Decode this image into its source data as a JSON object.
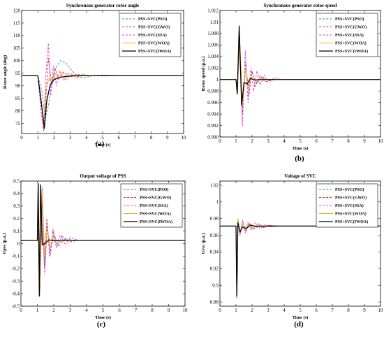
{
  "colors": {
    "PSO": "#2f88c8",
    "GWO": "#c0392b",
    "SSA": "#e838e8",
    "WOA": "#f0b020",
    "IWOA": "#000000"
  },
  "chart_data": [
    {
      "type": "line",
      "caption": "(a)",
      "title": "Synchronous generator rotor angle",
      "xlabel": "Time (s)",
      "ylabel": "Rotor angle (deg)",
      "xlim": [
        0,
        10
      ],
      "ylim": [
        71,
        120
      ],
      "xticks": [
        "0",
        "1",
        "2",
        "3",
        "4",
        "5",
        "6",
        "7",
        "8",
        "9",
        "10"
      ],
      "yticks": [
        "75",
        "80",
        "85",
        "90",
        "95",
        "100",
        "105",
        "110",
        "115",
        "120"
      ],
      "ytick_values": [
        75,
        80,
        85,
        90,
        95,
        100,
        105,
        110,
        115,
        120
      ],
      "legend": [
        "PSS+SVC(PSO)",
        "PSS+SVC(GWO)",
        "PSS+SVC(SSA)",
        "PSS+SVC(WOA)",
        "PSS+SVC(IWOA)"
      ],
      "legend_position": "top-right",
      "series": [
        {
          "name": "PSS+SVC(PSO)",
          "color": "#2f88c8",
          "dash": "3,2",
          "x": [
            0,
            1.0,
            1.25,
            1.45,
            1.65,
            1.85,
            2.1,
            2.4,
            2.75,
            3.1,
            3.5,
            3.9,
            4.4,
            5,
            6,
            10
          ],
          "y": [
            94,
            94,
            88,
            77,
            82,
            90,
            97,
            100,
            99,
            96,
            93.5,
            93.2,
            94,
            94.3,
            94,
            94
          ]
        },
        {
          "name": "PSS+SVC(GWO)",
          "color": "#c0392b",
          "dash": "3,2",
          "x": [
            0,
            1.0,
            1.2,
            1.35,
            1.5,
            1.65,
            1.85,
            2.05,
            2.3,
            2.6,
            3.0,
            3.5,
            4.2,
            10
          ],
          "y": [
            94,
            94,
            80,
            72,
            85,
            101,
            91,
            97,
            93,
            95.5,
            93.5,
            94.5,
            94,
            94
          ]
        },
        {
          "name": "PSS+SVC(SSA)",
          "color": "#e838e8",
          "dash": "3,2",
          "x": [
            0,
            1.0,
            1.2,
            1.35,
            1.5,
            1.65,
            1.8,
            1.95,
            2.15,
            2.35,
            2.6,
            2.9,
            3.3,
            3.8,
            10
          ],
          "y": [
            94,
            94,
            80,
            72,
            95,
            107,
            86,
            98,
            90,
            96,
            92,
            95,
            93.5,
            94,
            94
          ]
        },
        {
          "name": "PSS+SVC(WOA)",
          "color": "#f0b020",
          "dash": "",
          "x": [
            0,
            1.0,
            1.2,
            1.35,
            1.5,
            1.7,
            1.9,
            2.1,
            2.3,
            2.5,
            2.8,
            3.1,
            3.4,
            3.8,
            4.2,
            10
          ],
          "y": [
            94,
            94,
            85,
            75,
            89,
            93,
            91.5,
            95,
            92.5,
            95.5,
            92.5,
            95,
            93,
            94.5,
            94,
            94
          ]
        },
        {
          "name": "PSS+SVC(IWOA)",
          "color": "#000000",
          "dash": "",
          "x": [
            0,
            1.0,
            1.2,
            1.4,
            1.55,
            1.75,
            2.0,
            2.3,
            2.7,
            3.2,
            10
          ],
          "y": [
            94,
            94,
            84,
            73,
            84,
            90,
            92.5,
            93.3,
            93.7,
            94,
            94
          ]
        }
      ]
    },
    {
      "type": "line",
      "caption": "(b)",
      "title": "Synchronous generator rotor speed",
      "xlabel": "Time (s)",
      "ylabel": "Rotor speed (p.u.)",
      "xlim": [
        0,
        10
      ],
      "ylim": [
        0.99,
        1.012
      ],
      "xticks": [
        "0",
        "1",
        "2",
        "3",
        "4",
        "5",
        "6",
        "7",
        "8",
        "9",
        "10"
      ],
      "yticks": [
        "0.990",
        "0.992",
        "0.994",
        "0.996",
        "0.998",
        "1",
        "1.002",
        "1.004",
        "1.006",
        "1.008",
        "1.01",
        "1.012"
      ],
      "ytick_values": [
        0.99,
        0.992,
        0.994,
        0.996,
        0.998,
        1.0,
        1.002,
        1.004,
        1.006,
        1.008,
        1.01,
        1.012
      ],
      "legend": [
        "PSS+SVC(PSO)",
        "PSS+SVC(GWO)",
        "PSS+SVC(SSA)",
        "PSS+SVC(WOA)",
        "PSS+SVC(IWOA)"
      ],
      "legend_position": "top-right",
      "series": [
        {
          "name": "PSS+SVC(PSO)",
          "color": "#2f88c8",
          "dash": "3,2",
          "x": [
            0,
            1.0,
            1.1,
            1.2,
            1.4,
            1.6,
            1.8,
            2.0,
            2.3,
            2.6,
            3.0,
            3.5,
            10
          ],
          "y": [
            1.0,
            1.0,
            0.9985,
            1.007,
            0.995,
            1.002,
            0.9985,
            1.001,
            0.9993,
            1.0004,
            0.9998,
            1.0,
            1.0
          ]
        },
        {
          "name": "PSS+SVC(GWO)",
          "color": "#c0392b",
          "dash": "3,2",
          "x": [
            0,
            1.0,
            1.1,
            1.22,
            1.4,
            1.6,
            1.8,
            2.0,
            2.2,
            2.5,
            2.8,
            3.2,
            10
          ],
          "y": [
            1.0,
            1.0,
            0.998,
            1.008,
            0.994,
            1.003,
            0.997,
            1.0015,
            0.9988,
            1.0007,
            0.9996,
            1.0,
            1.0
          ]
        },
        {
          "name": "PSS+SVC(SSA)",
          "color": "#e838e8",
          "dash": "3,2",
          "x": [
            0,
            1.0,
            1.1,
            1.22,
            1.4,
            1.58,
            1.75,
            1.92,
            2.1,
            2.3,
            2.5,
            2.75,
            3.0,
            3.4,
            3.8,
            10
          ],
          "y": [
            1.0,
            1.0,
            0.998,
            1.0075,
            0.992,
            1.005,
            0.996,
            1.002,
            0.998,
            1.0015,
            0.999,
            1.0008,
            0.9995,
            1.0003,
            1.0,
            1.0
          ]
        },
        {
          "name": "PSS+SVC(WOA)",
          "color": "#f0b020",
          "dash": "",
          "x": [
            0,
            1.0,
            1.1,
            1.22,
            1.4,
            1.6,
            1.8,
            2.0,
            2.3,
            2.6,
            3.0,
            10
          ],
          "y": [
            1.0,
            1.0,
            0.9982,
            1.008,
            0.9955,
            1.002,
            0.9988,
            1.0008,
            0.9996,
            1.0002,
            1.0,
            1.0
          ]
        },
        {
          "name": "PSS+SVC(IWOA)",
          "color": "#000000",
          "dash": "",
          "x": [
            0,
            1.0,
            1.08,
            1.2,
            1.35,
            1.5,
            1.7,
            1.9,
            2.2,
            2.5,
            3.0,
            10
          ],
          "y": [
            1.0,
            1.0,
            0.9975,
            1.0093,
            0.9955,
            0.9995,
            0.9992,
            1.0002,
            0.9999,
            1.0,
            1.0,
            1.0
          ]
        }
      ]
    },
    {
      "type": "line",
      "caption": "(c)",
      "title": "Output voltage of  PSS",
      "xlabel": "Time (s)",
      "ylabel": "Upss (p.u.)",
      "xlim": [
        0,
        10
      ],
      "ylim": [
        -0.5,
        0.5
      ],
      "xticks": [
        "0",
        "1",
        "2",
        "3",
        "4",
        "5",
        "6",
        "7",
        "8",
        "9",
        "10"
      ],
      "yticks": [
        "-0.5",
        "-0.4",
        "-0.3",
        "-0.2",
        "-0.1",
        "0",
        "0.1",
        "0.2",
        "0.3",
        "0.4",
        "0.5"
      ],
      "ytick_values": [
        -0.5,
        -0.4,
        -0.3,
        -0.2,
        -0.1,
        0,
        0.1,
        0.2,
        0.3,
        0.4,
        0.5
      ],
      "legend": [
        "PSS+SVC(PSO)",
        "PSS+SVC(GWO)",
        "PSS+SVC(SSA)",
        "PSS+SVC(WOA)",
        "PSS+SVC(IWOA)"
      ],
      "legend_position": "top-right",
      "series": [
        {
          "name": "PSS+SVC(PSO)",
          "color": "#2f88c8",
          "dash": "3,2",
          "x": [
            0,
            1.0,
            1.05,
            1.15,
            1.3,
            1.45,
            1.6,
            1.8,
            2.0,
            2.3,
            2.7,
            3.2,
            10
          ],
          "y": [
            0.025,
            0.025,
            0.45,
            -0.42,
            0.45,
            -0.2,
            0.15,
            -0.08,
            0.08,
            -0.02,
            0.04,
            0.025,
            0.025
          ]
        },
        {
          "name": "PSS+SVC(GWO)",
          "color": "#c0392b",
          "dash": "3,2",
          "x": [
            0,
            1.0,
            1.05,
            1.15,
            1.28,
            1.42,
            1.58,
            1.75,
            1.95,
            2.2,
            2.5,
            2.9,
            3.4,
            10
          ],
          "y": [
            0.025,
            0.025,
            0.46,
            -0.42,
            0.43,
            -0.18,
            0.2,
            -0.1,
            0.1,
            -0.03,
            0.06,
            0.01,
            0.025,
            0.025
          ]
        },
        {
          "name": "PSS+SVC(SSA)",
          "color": "#e838e8",
          "dash": "3,2",
          "x": [
            0,
            1.0,
            1.05,
            1.15,
            1.3,
            1.45,
            1.6,
            1.78,
            1.95,
            2.15,
            2.4,
            2.7,
            3.0,
            3.5,
            10
          ],
          "y": [
            0.025,
            0.025,
            0.45,
            -0.4,
            0.4,
            -0.25,
            0.15,
            -0.1,
            0.12,
            -0.03,
            0.07,
            -0.01,
            0.05,
            0.025,
            0.025
          ]
        },
        {
          "name": "PSS+SVC(WOA)",
          "color": "#f0b020",
          "dash": "",
          "x": [
            0,
            1.0,
            1.05,
            1.15,
            1.28,
            1.45,
            1.6,
            1.8,
            2.0,
            2.3,
            2.7,
            10
          ],
          "y": [
            0.025,
            0.025,
            0.47,
            -0.42,
            0.44,
            -0.1,
            0.12,
            -0.03,
            0.05,
            0.01,
            0.025,
            0.025
          ]
        },
        {
          "name": "PSS+SVC(IWOA)",
          "color": "#000000",
          "dash": "",
          "x": [
            0,
            1.0,
            1.05,
            1.12,
            1.2,
            1.3,
            1.45,
            1.7,
            2.0,
            2.4,
            3.0,
            10
          ],
          "y": [
            0.025,
            0.025,
            0.48,
            -0.42,
            0.47,
            -0.01,
            0.0,
            0.03,
            0.022,
            0.025,
            0.025,
            0.025
          ]
        }
      ]
    },
    {
      "type": "line",
      "caption": "(d)",
      "title": "Voltage of SVC",
      "xlabel": "Time (s)",
      "ylabel": "Usvc (p.u.)",
      "xlim": [
        0,
        10
      ],
      "ylim": [
        0.875,
        1.025
      ],
      "xticks": [
        "0",
        "1",
        "2",
        "3",
        "4",
        "5",
        "6",
        "7",
        "8",
        "9",
        "10"
      ],
      "yticks": [
        "0.88",
        "0.9",
        "0.92",
        "0.94",
        "0.96",
        "0.98",
        "1",
        "1.02"
      ],
      "ytick_values": [
        0.88,
        0.9,
        0.92,
        0.94,
        0.96,
        0.98,
        1.0,
        1.02
      ],
      "legend": [
        "PSS+SVC(PSO)",
        "PSS+SVC(GWO)",
        "PSS+SVC(SSA)",
        "PSS+SVC(WOA)",
        "PSS+SVC(IWOA)"
      ],
      "legend_position": "top-right",
      "series": [
        {
          "name": "PSS+SVC(PSO)",
          "color": "#2f88c8",
          "dash": "3,2",
          "x": [
            0,
            1.0,
            1.05,
            1.12,
            1.25,
            1.45,
            1.65,
            1.9,
            2.2,
            2.5,
            2.9,
            3.3,
            10
          ],
          "y": [
            0.971,
            0.971,
            0.885,
            0.976,
            0.963,
            0.975,
            0.966,
            0.974,
            0.968,
            0.973,
            0.97,
            0.971,
            0.971
          ]
        },
        {
          "name": "PSS+SVC(GWO)",
          "color": "#c0392b",
          "dash": "3,2",
          "x": [
            0,
            1.0,
            1.05,
            1.12,
            1.25,
            1.42,
            1.6,
            1.8,
            2.05,
            2.35,
            2.7,
            3.1,
            3.6,
            10
          ],
          "y": [
            0.971,
            0.971,
            0.885,
            0.979,
            0.961,
            0.977,
            0.964,
            0.975,
            0.967,
            0.974,
            0.969,
            0.972,
            0.971,
            0.971
          ]
        },
        {
          "name": "PSS+SVC(SSA)",
          "color": "#e838e8",
          "dash": "3,2",
          "x": [
            0,
            1.0,
            1.05,
            1.12,
            1.25,
            1.42,
            1.58,
            1.75,
            1.95,
            2.2,
            2.5,
            2.85,
            3.2,
            3.7,
            10
          ],
          "y": [
            0.971,
            0.971,
            0.886,
            0.978,
            0.96,
            0.978,
            0.963,
            0.976,
            0.966,
            0.975,
            0.968,
            0.973,
            0.97,
            0.971,
            0.971
          ]
        },
        {
          "name": "PSS+SVC(WOA)",
          "color": "#f0b020",
          "dash": "",
          "x": [
            0,
            1.0,
            1.05,
            1.12,
            1.25,
            1.42,
            1.6,
            1.85,
            2.1,
            2.5,
            3.0,
            10
          ],
          "y": [
            0.971,
            0.971,
            0.886,
            0.98,
            0.963,
            0.976,
            0.966,
            0.974,
            0.969,
            0.972,
            0.971,
            0.971
          ]
        },
        {
          "name": "PSS+SVC(IWOA)",
          "color": "#000000",
          "dash": "",
          "x": [
            0,
            1.0,
            1.05,
            1.12,
            1.25,
            1.4,
            1.6,
            1.9,
            2.3,
            3.0,
            10
          ],
          "y": [
            0.971,
            0.971,
            0.887,
            0.975,
            0.964,
            0.97,
            0.968,
            0.972,
            0.9705,
            0.971,
            0.971
          ]
        }
      ]
    }
  ]
}
